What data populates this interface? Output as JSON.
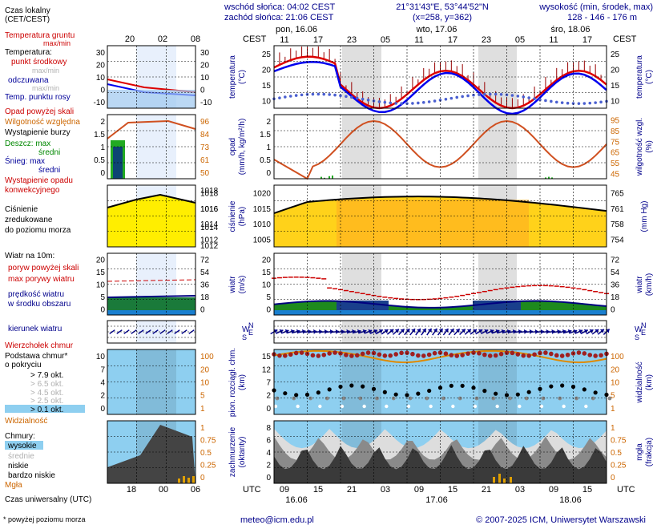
{
  "header": {
    "sunrise": "wschód słońca: 04:02 CEST",
    "sunset": "zachód słońca: 21:06 CEST",
    "coords": "21°31'43\"E, 53°44'52\"N",
    "grid": "(x=258, y=362)",
    "height_title": "wysokość (min, środek, max)",
    "height_values": "128 - 146 - 176 m"
  },
  "days": [
    "pon, 16.06",
    "wto, 17.06",
    "śro, 18.06"
  ],
  "tz_label": "CEST",
  "utc_label": "UTC",
  "top_hours": [
    "11",
    "17",
    "23",
    "05",
    "11",
    "17",
    "23",
    "05",
    "11",
    "17"
  ],
  "bottom_hours": [
    "09",
    "15",
    "21",
    "03",
    "09",
    "15",
    "21",
    "03",
    "09",
    "15"
  ],
  "bottom_dates": [
    "16.06",
    "17.06",
    "18.06"
  ],
  "legend": {
    "time_zone": "Czas lokalny\n(CET/CEST)",
    "top_hours": [
      "20",
      "02",
      "08"
    ],
    "bottom_hours": [
      "18",
      "00",
      "06"
    ],
    "soil_temp": "Temperatura gruntu",
    "maxmin": "max/min",
    "temperature": "Temperatura:",
    "midpoint": "punkt środkowy",
    "maxmin_gray": "max/min",
    "feels_like": "odczuwana",
    "maxmin_gray2": "max/min",
    "dewpoint": "Temp. punktu rosy",
    "precip_above": "Opad powyżej skali",
    "humidity": "Wilgotność względna",
    "storm": "Wystąpienie burzy",
    "rain_max": "Deszcz: max",
    "rain_mean": "średni",
    "snow_max": "Śnieg: max",
    "snow_mean": "średni",
    "conv": "Wystąpienie opadu\nkonwekcyjnego",
    "pressure": "Ciśnienie\nzredukowane\ndo poziomu morza",
    "wind10": "Wiatr na 10m:",
    "gusts_above": "poryw powyżej skali",
    "max_gust": "max porywy wiatru",
    "mean_wind": "prędkość wiatru\nw środku obszaru",
    "wind_dir": "kierunek wiatru",
    "cloud_top": "Wierzchołek chmur",
    "cloud_base": "Podstawa chmur*\no pokryciu",
    "okt79": "> 7.9 okt.",
    "okt65": "> 6.5 okt.",
    "okt45": "> 4.5 okt.",
    "okt25": "> 2.5 okt.",
    "okt01": "> 0.1 okt.",
    "visibility": "Widzialność",
    "clouds": "Chmury:",
    "high": "wysokie",
    "mid": "średnie",
    "low": "niskie",
    "vlow": "bardzo niskie",
    "fog": "Mgła",
    "utc_time": "Czas uniwersalny (UTC)",
    "footnote": "* powyżej poziomu morza"
  },
  "panels": {
    "temp": {
      "ylabel": "temperatura\n(°C)",
      "rlabel": "temperatura\n(°C)",
      "ticks": [
        25,
        20,
        15,
        10
      ],
      "l_ticks": [
        30,
        20,
        10,
        0,
        -10
      ]
    },
    "precip": {
      "ylabel": "opad\n(mm/h, kg/m²/h)",
      "rlabel": "wilgotność wzgl.\n(%)",
      "left_ticks": [
        2.0,
        1.5,
        1.0,
        0.5,
        0.0
      ],
      "right_ticks": [
        95,
        85,
        75,
        65,
        55,
        45
      ],
      "l_left": [
        2.0,
        1.5,
        1.0,
        0.5,
        0.0
      ],
      "l_right": [
        96,
        84,
        73,
        61,
        50
      ]
    },
    "pres": {
      "ylabel": "ciśnienie\n(hPa)",
      "rlabel": "(mm Hg)",
      "left_ticks": [
        1020,
        1015,
        1010,
        1005
      ],
      "right_ticks": [
        765,
        761,
        758,
        754
      ],
      "l_left": [
        1018,
        1016,
        1014,
        1012
      ],
      "l_right": [
        1018,
        1016,
        1014,
        1012
      ]
    },
    "wind": {
      "ylabel": "wiatr\n(m/s)",
      "rlabel": "wiatr\n(km/h)",
      "left_ticks": [
        20,
        15,
        10,
        5,
        0
      ],
      "right_ticks": [
        72,
        54,
        36,
        18,
        0
      ],
      "l_left": [
        20,
        15,
        10,
        5,
        0
      ],
      "l_right": [
        72,
        54,
        36,
        18,
        0
      ]
    },
    "dir": {
      "compass": [
        "N",
        "W",
        "E",
        "S"
      ]
    },
    "cloudbase": {
      "ylabel": "pion. rozciągł. chm.\n(km)",
      "rlabel": "widzialność\n(km)",
      "left_ticks": [
        15.0,
        12.0,
        7.0,
        2.0,
        0.0
      ],
      "right_ticks": [
        100,
        20,
        10,
        5,
        1
      ],
      "l_left": [
        10.0,
        7.0,
        4.0,
        2.0,
        0.0
      ],
      "l_right": [
        100,
        20,
        10,
        5,
        1
      ]
    },
    "clouds": {
      "ylabel": "zachmurzenie\n(oktanty)",
      "rlabel": "mgła\n(frakcja)",
      "left_ticks": [
        8,
        6,
        4,
        2,
        0
      ],
      "right_ticks": [
        1,
        0.75,
        0.5,
        0.25,
        0
      ],
      "l_right": [
        1,
        0.75,
        0.5,
        0.25,
        0
      ]
    }
  },
  "footer": {
    "email": "meteo@icm.edu.pl",
    "copyright": "© 2007-2025 ICM, Uniwersytet Warszawski"
  },
  "colors": {
    "grid": "#000000",
    "night": "#d8d8d8",
    "temp_red": "#cc0000",
    "temp_blue": "#0000cc",
    "humidity": "#cc4400",
    "pressure_fill": "#ffdd00",
    "pressure_dark": "#ffaa00",
    "wind_green": "#228822",
    "wind_blue": "#0066cc",
    "sky_blue": "#88ccee",
    "cloud_dark": "#333333"
  }
}
